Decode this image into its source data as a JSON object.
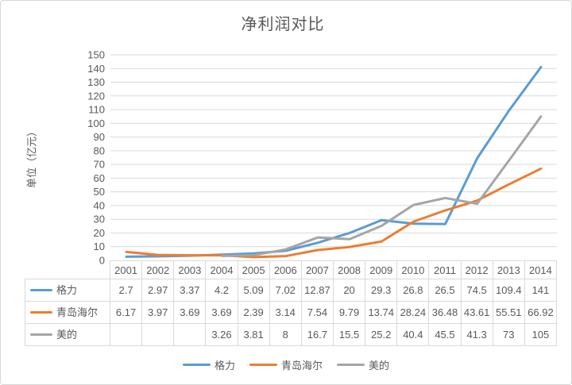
{
  "chart_data": {
    "type": "line",
    "title": "净利润对比",
    "ylabel": "单位（亿元）",
    "xlabel": "",
    "categories": [
      "2001",
      "2002",
      "2003",
      "2004",
      "2005",
      "2006",
      "2007",
      "2008",
      "2009",
      "2010",
      "2011",
      "2012",
      "2013",
      "2014"
    ],
    "series": [
      {
        "name": "格力",
        "color": "#5B9BD5",
        "values": [
          2.7,
          2.97,
          3.37,
          4.2,
          5.09,
          7.02,
          12.87,
          20,
          29.3,
          26.8,
          26.5,
          74.5,
          109.4,
          141
        ]
      },
      {
        "name": "青岛海尔",
        "color": "#ED7D31",
        "values": [
          6.17,
          3.97,
          3.69,
          3.69,
          2.39,
          3.14,
          7.54,
          9.79,
          13.74,
          28.24,
          36.48,
          43.61,
          55.51,
          66.92
        ]
      },
      {
        "name": "美的",
        "color": "#A5A5A5",
        "values": [
          null,
          null,
          null,
          3.26,
          3.81,
          8,
          16.7,
          15.5,
          25.2,
          40.4,
          45.5,
          41.3,
          73,
          105
        ]
      }
    ],
    "ylim": [
      0,
      150
    ],
    "ytick_step": 10,
    "grid": true,
    "legend_position": "bottom",
    "show_data_table": true
  },
  "colors": {
    "text": "#595959",
    "gridline": "#D9D9D9",
    "table_border": "#D9D9D9",
    "frame_border": "#D7D7D7",
    "background": "#FFFFFF",
    "series_blue": "#5B9BD5",
    "series_orange": "#ED7D31",
    "series_gray": "#A5A5A5"
  }
}
